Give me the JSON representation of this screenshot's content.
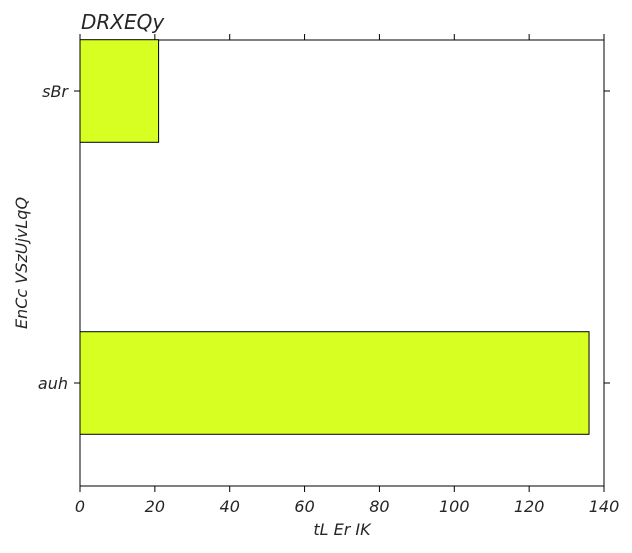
{
  "chart_data": {
    "type": "bar",
    "orientation": "horizontal",
    "title": "DRXEQy",
    "xlabel": "tL Er IK",
    "ylabel": "EnCc VSzUjvLqQ",
    "categories": [
      "sBr",
      "auh"
    ],
    "values": [
      21,
      136
    ],
    "xlim": [
      0,
      140
    ],
    "xticks": [
      0,
      20,
      40,
      60,
      80,
      100,
      120,
      140
    ],
    "grid": false,
    "bar_color": "#d7ff22",
    "bar_edge_color": "#000000"
  }
}
